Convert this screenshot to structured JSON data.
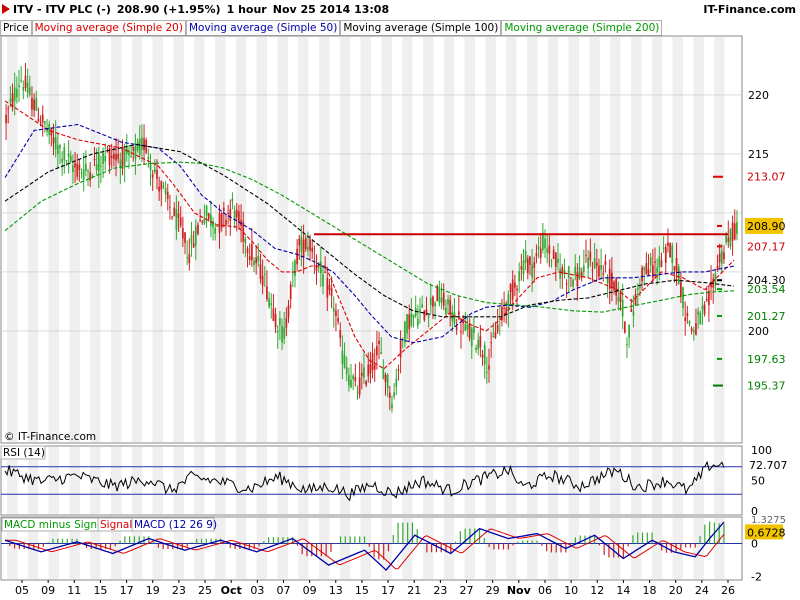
{
  "header": {
    "symbol": "ITV - ITV PLC (-)",
    "price_change": "208.90 (+1.95%)",
    "timeframe": "1 hour",
    "datetime": "Nov 25 2014 13:08",
    "site": "IT-Finance.com"
  },
  "legend": [
    {
      "label": "Price",
      "color": "#000000"
    },
    {
      "label": "Moving average (Simple 20)",
      "color": "#dd0000"
    },
    {
      "label": "Moving average (Simple 50)",
      "color": "#0000aa"
    },
    {
      "label": "Moving average (Simple 100)",
      "color": "#000000"
    },
    {
      "label": "Moving average (Simple 200)",
      "color": "#009900"
    }
  ],
  "watermark": "© IT-Finance.com",
  "chart_data": [
    {
      "type": "candlestick",
      "panel": "price",
      "ylim": [
        190.5,
        225
      ],
      "y_ticks": [
        200,
        205,
        210,
        215,
        220
      ],
      "y_tick_labels": [
        "200",
        "",
        "",
        "215",
        "220"
      ],
      "x_tick_labels": [
        "05",
        "09",
        "11",
        "15",
        "17",
        "19",
        "23",
        "25",
        "Oct",
        "03",
        "07",
        "09",
        "13",
        "15",
        "17",
        "21",
        "23",
        "27",
        "29",
        "Nov",
        "06",
        "10",
        "12",
        "14",
        "18",
        "20",
        "24",
        "26"
      ],
      "x_tick_bold": [
        "Oct",
        "Nov"
      ],
      "price_path": [
        [
          0,
          218
        ],
        [
          0.02,
          221.5
        ],
        [
          0.04,
          219
        ],
        [
          0.06,
          216.5
        ],
        [
          0.09,
          214
        ],
        [
          0.11,
          213.5
        ],
        [
          0.14,
          215
        ],
        [
          0.17,
          214.5
        ],
        [
          0.19,
          216
        ],
        [
          0.2,
          214
        ],
        [
          0.22,
          211
        ],
        [
          0.24,
          208.5
        ],
        [
          0.25,
          206.5
        ],
        [
          0.27,
          210
        ],
        [
          0.29,
          209
        ],
        [
          0.31,
          210.5
        ],
        [
          0.32,
          209
        ],
        [
          0.33,
          207.5
        ],
        [
          0.34,
          206
        ],
        [
          0.35,
          205
        ],
        [
          0.36,
          203
        ],
        [
          0.37,
          201
        ],
        [
          0.38,
          199.5
        ],
        [
          0.39,
          203.5
        ],
        [
          0.4,
          207
        ],
        [
          0.415,
          207.5
        ],
        [
          0.43,
          205
        ],
        [
          0.44,
          203.5
        ],
        [
          0.45,
          202
        ],
        [
          0.46,
          198
        ],
        [
          0.47,
          196
        ],
        [
          0.48,
          195
        ],
        [
          0.5,
          197
        ],
        [
          0.51,
          198.5
        ],
        [
          0.52,
          196
        ],
        [
          0.53,
          194
        ],
        [
          0.54,
          198.5
        ],
        [
          0.55,
          201
        ],
        [
          0.57,
          201.5
        ],
        [
          0.59,
          203
        ],
        [
          0.61,
          201.5
        ],
        [
          0.63,
          200
        ],
        [
          0.65,
          199
        ],
        [
          0.66,
          197
        ],
        [
          0.67,
          200
        ],
        [
          0.69,
          203
        ],
        [
          0.7,
          204.5
        ],
        [
          0.71,
          206
        ],
        [
          0.72,
          205.5
        ],
        [
          0.735,
          207.5
        ],
        [
          0.75,
          206
        ],
        [
          0.76,
          205
        ],
        [
          0.78,
          204.5
        ],
        [
          0.8,
          206
        ],
        [
          0.82,
          205
        ],
        [
          0.84,
          203
        ],
        [
          0.85,
          199.5
        ],
        [
          0.87,
          205
        ],
        [
          0.89,
          205.5
        ],
        [
          0.91,
          207
        ],
        [
          0.92,
          205
        ],
        [
          0.93,
          201.5
        ],
        [
          0.94,
          200
        ],
        [
          0.96,
          202
        ],
        [
          0.975,
          206
        ],
        [
          1,
          209
        ]
      ],
      "candle_range_max": 2.4,
      "series": [
        {
          "name": "Moving average (Simple 20)",
          "color": "#dd0000",
          "values": [
            [
              0,
              219.5
            ],
            [
              0.06,
              217
            ],
            [
              0.1,
              216.2
            ],
            [
              0.16,
              215.5
            ],
            [
              0.21,
              214
            ],
            [
              0.23,
              212.5
            ],
            [
              0.26,
              210
            ],
            [
              0.29,
              209
            ],
            [
              0.32,
              208.8
            ],
            [
              0.34,
              207.5
            ],
            [
              0.36,
              206
            ],
            [
              0.38,
              205
            ],
            [
              0.4,
              205
            ],
            [
              0.42,
              205.5
            ],
            [
              0.44,
              205.5
            ],
            [
              0.46,
              202.5
            ],
            [
              0.48,
              199.5
            ],
            [
              0.5,
              197.5
            ],
            [
              0.52,
              196.8
            ],
            [
              0.55,
              198.5
            ],
            [
              0.58,
              200
            ],
            [
              0.61,
              201.5
            ],
            [
              0.64,
              200.5
            ],
            [
              0.66,
              200
            ],
            [
              0.68,
              201
            ],
            [
              0.7,
              202.5
            ],
            [
              0.73,
              204.5
            ],
            [
              0.76,
              205
            ],
            [
              0.8,
              204.5
            ],
            [
              0.84,
              203.5
            ],
            [
              0.86,
              202.5
            ],
            [
              0.9,
              205
            ],
            [
              0.93,
              204.5
            ],
            [
              0.96,
              203.5
            ],
            [
              1,
              206
            ]
          ]
        },
        {
          "name": "Moving average (Simple 50)",
          "color": "#0000aa",
          "values": [
            [
              0,
              213
            ],
            [
              0.04,
              217
            ],
            [
              0.1,
              217.5
            ],
            [
              0.16,
              216
            ],
            [
              0.21,
              215.5
            ],
            [
              0.24,
              214
            ],
            [
              0.27,
              211.5
            ],
            [
              0.3,
              210
            ],
            [
              0.34,
              208.5
            ],
            [
              0.37,
              207
            ],
            [
              0.4,
              206.5
            ],
            [
              0.42,
              206
            ],
            [
              0.45,
              205
            ],
            [
              0.48,
              203
            ],
            [
              0.5,
              201.5
            ],
            [
              0.53,
              199.5
            ],
            [
              0.56,
              199
            ],
            [
              0.6,
              199.5
            ],
            [
              0.64,
              201.5
            ],
            [
              0.66,
              202
            ],
            [
              0.69,
              202.2
            ],
            [
              0.72,
              202
            ],
            [
              0.75,
              202.5
            ],
            [
              0.78,
              203.5
            ],
            [
              0.82,
              204.5
            ],
            [
              0.86,
              204.5
            ],
            [
              0.9,
              204.8
            ],
            [
              0.93,
              205
            ],
            [
              0.96,
              205
            ],
            [
              1,
              205.5
            ]
          ]
        },
        {
          "name": "Moving average (Simple 100)",
          "color": "#000000",
          "values": [
            [
              0,
              211
            ],
            [
              0.06,
              213.5
            ],
            [
              0.12,
              215
            ],
            [
              0.18,
              215.8
            ],
            [
              0.24,
              215.2
            ],
            [
              0.3,
              213.2
            ],
            [
              0.36,
              210.8
            ],
            [
              0.4,
              208.8
            ],
            [
              0.44,
              206.8
            ],
            [
              0.48,
              204.8
            ],
            [
              0.52,
              203
            ],
            [
              0.56,
              201.7
            ],
            [
              0.6,
              201.2
            ],
            [
              0.64,
              201.2
            ],
            [
              0.68,
              201.2
            ],
            [
              0.72,
              202.2
            ],
            [
              0.76,
              202.6
            ],
            [
              0.8,
              202.8
            ],
            [
              0.84,
              203.4
            ],
            [
              0.88,
              204
            ],
            [
              0.92,
              204.3
            ],
            [
              0.96,
              204.1
            ],
            [
              1,
              203.8
            ]
          ]
        },
        {
          "name": "Moving average (Simple 200)",
          "color": "#009900",
          "values": [
            [
              0,
              208.5
            ],
            [
              0.05,
              211
            ],
            [
              0.1,
              212.5
            ],
            [
              0.15,
              213.8
            ],
            [
              0.2,
              214.2
            ],
            [
              0.24,
              214.3
            ],
            [
              0.27,
              214.2
            ],
            [
              0.3,
              213.8
            ],
            [
              0.34,
              212.8
            ],
            [
              0.38,
              211.5
            ],
            [
              0.42,
              210
            ],
            [
              0.46,
              208.5
            ],
            [
              0.5,
              207
            ],
            [
              0.54,
              205.5
            ],
            [
              0.58,
              204
            ],
            [
              0.62,
              203
            ],
            [
              0.66,
              202.4
            ],
            [
              0.7,
              202.2
            ],
            [
              0.74,
              202
            ],
            [
              0.78,
              201.7
            ],
            [
              0.82,
              201.6
            ],
            [
              0.86,
              202.1
            ],
            [
              0.9,
              202.6
            ],
            [
              0.94,
              203.1
            ],
            [
              0.97,
              203.3
            ],
            [
              1,
              203.4
            ]
          ]
        }
      ],
      "resistance_line": {
        "value": 208.2,
        "color": "#cc0000"
      },
      "level_labels": [
        {
          "text": "213.07",
          "value": 213.07,
          "text_color": "#cc0000",
          "marker_color": "#dd0000",
          "marker": "solid"
        },
        {
          "text": "208.90",
          "value": 208.9,
          "text_color": "#000000",
          "marker_color": "#dd0000",
          "marker": "dashed",
          "highlight": "#f2c400"
        },
        {
          "text": "207.17",
          "value": 207.17,
          "text_color": "#cc0000",
          "marker_color": "#dd0000",
          "marker": "dashed"
        },
        {
          "text": "204.30",
          "value": 204.3,
          "text_color": "#000000",
          "marker_color": "#000000",
          "marker": "dashed"
        },
        {
          "text": "203.54",
          "value": 203.54,
          "text_color": "#008000",
          "marker_color": "#009900",
          "marker": "dashed"
        },
        {
          "text": "201.27",
          "value": 201.27,
          "text_color": "#008000",
          "marker_color": "#009900",
          "marker": "dashed"
        },
        {
          "text": "197.63",
          "value": 197.63,
          "text_color": "#008000",
          "marker_color": "#009900",
          "marker": "dashed"
        },
        {
          "text": "195.37",
          "value": 195.37,
          "text_color": "#008000",
          "marker_color": "#007700",
          "marker": "solid"
        }
      ]
    },
    {
      "type": "line",
      "panel": "rsi",
      "legend": [
        "RSI (14)"
      ],
      "ylim": [
        0,
        100
      ],
      "y_tick_labels": [
        "100",
        "50",
        "0"
      ],
      "bands": [
        30,
        70
      ],
      "last_value": "72.707",
      "path": [
        [
          0,
          65
        ],
        [
          0.05,
          48
        ],
        [
          0.1,
          57
        ],
        [
          0.15,
          42
        ],
        [
          0.2,
          52
        ],
        [
          0.23,
          35
        ],
        [
          0.26,
          55
        ],
        [
          0.3,
          48
        ],
        [
          0.34,
          38
        ],
        [
          0.38,
          55
        ],
        [
          0.42,
          35
        ],
        [
          0.45,
          42
        ],
        [
          0.48,
          30
        ],
        [
          0.51,
          45
        ],
        [
          0.54,
          30
        ],
        [
          0.58,
          50
        ],
        [
          0.62,
          35
        ],
        [
          0.65,
          48
        ],
        [
          0.7,
          65
        ],
        [
          0.72,
          40
        ],
        [
          0.76,
          58
        ],
        [
          0.8,
          42
        ],
        [
          0.85,
          65
        ],
        [
          0.88,
          40
        ],
        [
          0.92,
          50
        ],
        [
          0.95,
          35
        ],
        [
          0.98,
          72.7
        ],
        [
          1,
          72.7
        ]
      ]
    },
    {
      "type": "macd",
      "panel": "macd",
      "legend": [
        "MACD minus Signal",
        "Signal",
        "MACD (12 26 9)"
      ],
      "legend_colors": [
        "#009900",
        "#dd0000",
        "#0000aa"
      ],
      "ylim": [
        -2.2,
        1.6
      ],
      "y_tick_labels": [
        "0",
        "-2"
      ],
      "last_value": "0.6728",
      "partial_label": "1.3275",
      "path": [
        [
          0,
          0.2
        ],
        [
          0.05,
          -0.5
        ],
        [
          0.1,
          0.1
        ],
        [
          0.15,
          -0.6
        ],
        [
          0.2,
          0.3
        ],
        [
          0.25,
          -0.4
        ],
        [
          0.3,
          0.2
        ],
        [
          0.35,
          -0.5
        ],
        [
          0.4,
          0.3
        ],
        [
          0.45,
          -1.3
        ],
        [
          0.5,
          -0.4
        ],
        [
          0.53,
          -1.6
        ],
        [
          0.57,
          0.5
        ],
        [
          0.62,
          -0.6
        ],
        [
          0.66,
          0.9
        ],
        [
          0.7,
          0.3
        ],
        [
          0.74,
          0.6
        ],
        [
          0.78,
          -0.3
        ],
        [
          0.82,
          0.5
        ],
        [
          0.86,
          -0.9
        ],
        [
          0.9,
          0.2
        ],
        [
          0.93,
          -0.5
        ],
        [
          0.96,
          -0.8
        ],
        [
          0.98,
          0.3
        ],
        [
          1,
          1.3
        ]
      ],
      "signal_lag": 0.015
    }
  ]
}
